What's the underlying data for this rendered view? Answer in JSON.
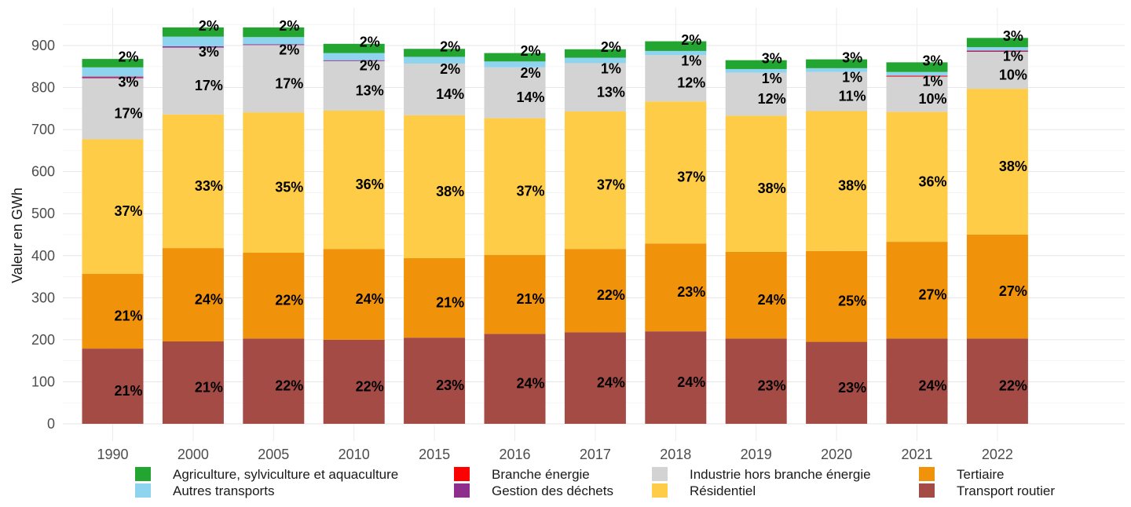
{
  "chart_data": {
    "type": "bar",
    "stacked": true,
    "title": "",
    "xlabel": "",
    "ylabel": "Valeur en GWh",
    "ylim": [
      0,
      950
    ],
    "yticks": [
      0,
      100,
      200,
      300,
      400,
      500,
      600,
      700,
      800,
      900
    ],
    "grid": true,
    "legend_position": "bottom",
    "categories": [
      "1990",
      "2000",
      "2005",
      "2010",
      "2015",
      "2016",
      "2017",
      "2018",
      "2019",
      "2020",
      "2021",
      "2022"
    ],
    "series": [
      {
        "name": "Transport routier",
        "color": "#A44B46",
        "values": [
          179,
          196,
          203,
          200,
          205,
          214,
          218,
          220,
          203,
          195,
          203,
          203
        ],
        "labels": [
          "21%",
          "21%",
          "22%",
          "22%",
          "23%",
          "24%",
          "24%",
          "24%",
          "23%",
          "23%",
          "24%",
          "22%"
        ]
      },
      {
        "name": "Tertiaire",
        "color": "#F0920A",
        "values": [
          178,
          222,
          204,
          216,
          189,
          188,
          198,
          209,
          206,
          216,
          230,
          247
        ],
        "labels": [
          "21%",
          "24%",
          "22%",
          "24%",
          "21%",
          "21%",
          "22%",
          "23%",
          "24%",
          "25%",
          "27%",
          "27%"
        ]
      },
      {
        "name": "Résidentiel",
        "color": "#FECC46",
        "values": [
          320,
          318,
          334,
          329,
          340,
          325,
          327,
          338,
          324,
          333,
          309,
          347
        ],
        "labels": [
          "37%",
          "33%",
          "35%",
          "36%",
          "38%",
          "37%",
          "37%",
          "37%",
          "38%",
          "38%",
          "36%",
          "38%"
        ]
      },
      {
        "name": "Industrie hors branche énergie",
        "color": "#D3D3D3",
        "values": [
          145,
          159,
          160,
          118,
          123,
          121,
          115,
          110,
          102,
          93,
          84,
          88
        ],
        "labels": [
          "17%",
          "17%",
          "17%",
          "13%",
          "14%",
          "14%",
          "13%",
          "12%",
          "12%",
          "11%",
          "10%",
          "10%"
        ]
      },
      {
        "name": "Gestion des déchets",
        "color": "#8E2F8E",
        "values": [
          3,
          3,
          2,
          2,
          0,
          0,
          0,
          0,
          0,
          0,
          0,
          2
        ],
        "labels": [
          "",
          "",
          "",
          "",
          "",
          "",
          "",
          "",
          "",
          "",
          "",
          ""
        ]
      },
      {
        "name": "Branche énergie",
        "color": "#FF0000",
        "values": [
          1,
          0,
          0,
          0,
          0,
          0,
          0,
          0,
          0,
          0,
          2,
          1
        ],
        "labels": [
          "",
          "",
          "",
          "",
          "",
          "",
          "",
          "",
          "",
          "",
          "",
          ""
        ]
      },
      {
        "name": "Autres transports",
        "color": "#8FD4EE",
        "values": [
          22,
          23,
          17,
          17,
          16,
          14,
          13,
          10,
          9,
          9,
          9,
          8
        ],
        "labels": [
          "3%",
          "3%",
          "2%",
          "2%",
          "2%",
          "2%",
          "1%",
          "1%",
          "1%",
          "1%",
          "1%",
          "1%"
        ]
      },
      {
        "name": "Agriculture, sylviculture et aquaculture",
        "color": "#23A532",
        "values": [
          20,
          22,
          23,
          22,
          19,
          20,
          20,
          23,
          21,
          21,
          23,
          22
        ],
        "labels": [
          "2%",
          "2%",
          "2%",
          "2%",
          "2%",
          "2%",
          "2%",
          "2%",
          "3%",
          "3%",
          "3%",
          "3%"
        ]
      }
    ],
    "legend_order": [
      "Agriculture, sylviculture et aquaculture",
      "Autres transports",
      "Branche énergie",
      "Gestion des déchets",
      "Industrie hors branche énergie",
      "Résidentiel",
      "Tertiaire",
      "Transport routier"
    ]
  }
}
